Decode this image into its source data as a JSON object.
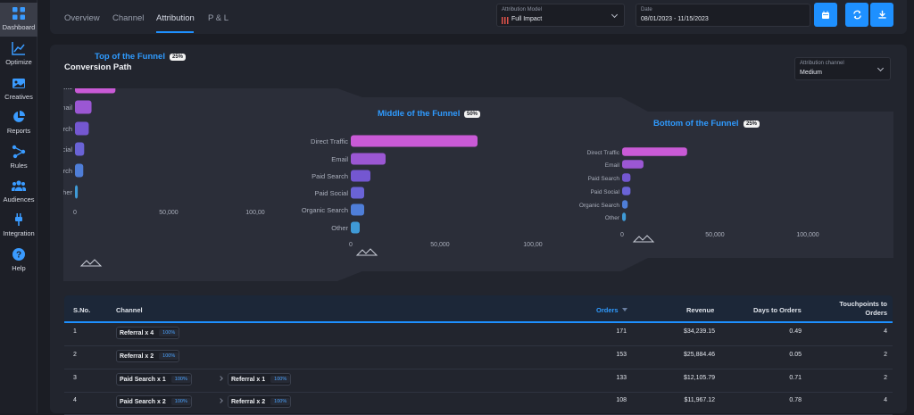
{
  "sidebar": {
    "items": [
      {
        "label": "Dashboard",
        "icon": "grid-icon"
      },
      {
        "label": "Optimize",
        "icon": "chart-line-icon"
      },
      {
        "label": "Creatives",
        "icon": "image-icon"
      },
      {
        "label": "Reports",
        "icon": "pie-chart-icon"
      },
      {
        "label": "Rules",
        "icon": "nodes-icon"
      },
      {
        "label": "Audiences",
        "icon": "users-icon"
      },
      {
        "label": "Integration",
        "icon": "plug-icon"
      },
      {
        "label": "Help",
        "icon": "help-icon"
      }
    ]
  },
  "header": {
    "tabs": [
      "Overview",
      "Channel",
      "Attribution",
      "P & L"
    ],
    "active_tab": "Attribution",
    "attribution_model": {
      "label": "Attribution Model",
      "value": "Full Impact"
    },
    "date": {
      "label": "Date",
      "value": "08/01/2023 - 11/15/2023"
    },
    "buttons": [
      "calendar-icon",
      "refresh-icon",
      "download-icon"
    ]
  },
  "conversion_path": {
    "title": "Conversion Path",
    "attribution_channel": {
      "label": "Attribution channel",
      "value": "Medium"
    }
  },
  "colors": {
    "accent": "#1e90ff",
    "background": "#1b1d24",
    "card": "#22252e"
  },
  "chart_data": [
    {
      "type": "bar",
      "title": "Top of the Funnel",
      "badge": "25%",
      "categories": [
        "Direct Traffic",
        "Email",
        "Paid Search",
        "Paid Social",
        "Organic Search",
        "Other"
      ],
      "values": [
        22000,
        9000,
        7500,
        5000,
        4500,
        1500
      ],
      "xticks": [
        "0",
        "50,000",
        "100,00"
      ],
      "xlim": [
        0,
        100000
      ]
    },
    {
      "type": "bar",
      "title": "Middle of the Funnel",
      "badge": "50%",
      "categories": [
        "Direct Traffic",
        "Email",
        "Paid Search",
        "Paid Social",
        "Organic Search",
        "Other"
      ],
      "values": [
        71000,
        19500,
        11000,
        7500,
        7500,
        5000
      ],
      "xticks": [
        "0",
        "50,000",
        "100,00"
      ],
      "xlim": [
        0,
        100000
      ]
    },
    {
      "type": "bar",
      "title": "Bottom of the Funnel",
      "badge": "25%",
      "categories": [
        "Direct Traffic",
        "Email",
        "Paid Search",
        "Paid Social",
        "Organic Search",
        "Other"
      ],
      "values": [
        35000,
        11500,
        4500,
        4500,
        3000,
        2000
      ],
      "xticks": [
        "0",
        "50,000",
        "100,000"
      ],
      "xlim": [
        0,
        100000
      ]
    }
  ],
  "table": {
    "columns": [
      "S.No.",
      "Channel",
      "Orders",
      "Revenue",
      "Days to Orders",
      "Touchpoints to Orders"
    ],
    "sorted_column": "Orders",
    "rows": [
      {
        "sno": "1",
        "channel": [
          {
            "name": "Referral x 4",
            "pct": "100%"
          }
        ],
        "orders": "171",
        "revenue": "$34,239.15",
        "days": "0.49",
        "touchpoints": "4"
      },
      {
        "sno": "2",
        "channel": [
          {
            "name": "Referral x 2",
            "pct": "100%"
          }
        ],
        "orders": "153",
        "revenue": "$25,884.46",
        "days": "0.05",
        "touchpoints": "2"
      },
      {
        "sno": "3",
        "channel": [
          {
            "name": "Paid Search x 1",
            "pct": "100%"
          },
          {
            "name": "Referral x 1",
            "pct": "100%"
          }
        ],
        "orders": "133",
        "revenue": "$12,105.79",
        "days": "0.71",
        "touchpoints": "2"
      },
      {
        "sno": "4",
        "channel": [
          {
            "name": "Paid Search x 2",
            "pct": "100%"
          },
          {
            "name": "Referral x 2",
            "pct": "100%"
          }
        ],
        "orders": "108",
        "revenue": "$11,967.12",
        "days": "0.78",
        "touchpoints": "4"
      }
    ]
  }
}
